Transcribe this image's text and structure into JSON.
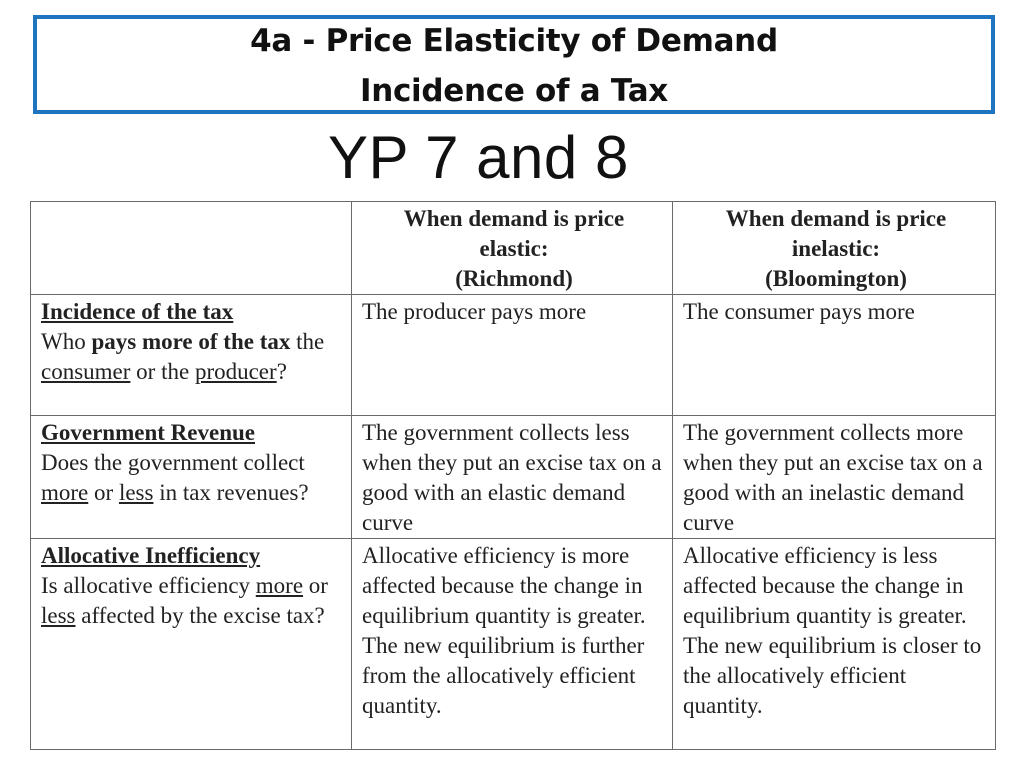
{
  "slide": {
    "title_line1": "4a - Price Elasticity of Demand",
    "title_line2": "Incidence of a Tax",
    "subtitle": "YP 7 and 8",
    "accent_color": "#1f74c0"
  },
  "table": {
    "header": {
      "col1": "",
      "col2": {
        "line1": "When demand is price",
        "line2": "elastic:",
        "line3": "(Richmond)"
      },
      "col3": {
        "line1": "When demand is price",
        "line2": "inelastic:",
        "line3": "(Bloomington)"
      }
    },
    "rows": [
      {
        "title": "Incidence of the tax",
        "question": {
          "p1": "Who ",
          "p2": "pays more of the tax",
          "p3": " the ",
          "p4": "consumer",
          "p5": " or the ",
          "p6": "producer",
          "p7": "?"
        },
        "elastic": "The producer pays more",
        "inelastic": "The consumer pays more"
      },
      {
        "title": "Government Revenue",
        "question": {
          "p1": "Does the government collect ",
          "p2": "more",
          "p3": " or ",
          "p4": "less",
          "p5": " in tax revenues?"
        },
        "elastic": "The government collects less when they put an excise tax on a good with an elastic demand curve",
        "inelastic": "The government collects more when they put an excise tax on a good with an inelastic demand curve"
      },
      {
        "title": "Allocative Inefficiency",
        "question": {
          "p1": "Is allocative efficiency ",
          "p2": "more",
          "p3": " or ",
          "p4": "less",
          "p5": " affected by the excise tax?"
        },
        "elastic": "Allocative efficiency is more affected because the change in equilibrium quantity is greater.  The new equilibrium is further from the allocatively efficient quantity.",
        "inelastic": "Allocative efficiency is less affected because the change in equilibrium quantity is greater.  The new equilibrium is closer to the allocatively efficient quantity."
      }
    ]
  }
}
